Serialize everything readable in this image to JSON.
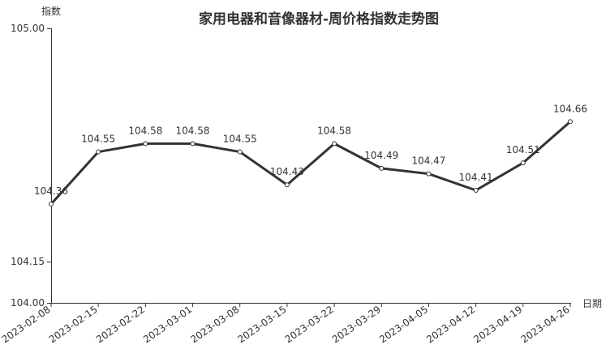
{
  "chart_data": {
    "type": "line",
    "title": "家用电器和音像器材-周价格指数走势图",
    "xlabel": "日期",
    "ylabel": "指数",
    "ylim": [
      104.0,
      105.0
    ],
    "yticks": [
      "104.00",
      "104.15",
      "105.00"
    ],
    "categories": [
      "2023-02-08",
      "2023-02-15",
      "2023-02-22",
      "2023-03-01",
      "2023-03-08",
      "2023-03-15",
      "2023-03-22",
      "2023-03-29",
      "2023-04-05",
      "2023-04-12",
      "2023-04-19",
      "2023-04-26"
    ],
    "values": [
      104.36,
      104.55,
      104.58,
      104.58,
      104.55,
      104.43,
      104.58,
      104.49,
      104.47,
      104.41,
      104.51,
      104.66
    ],
    "line_color": "#333333",
    "grid": false,
    "legend": "none"
  }
}
